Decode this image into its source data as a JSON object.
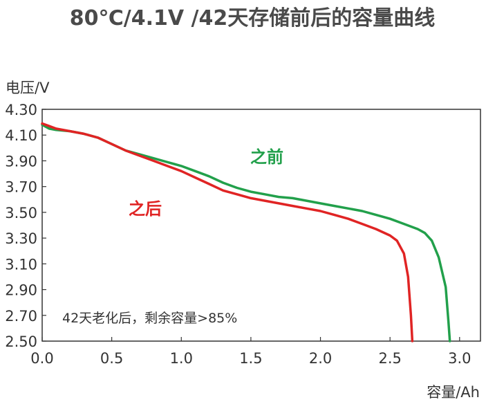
{
  "chart_data": {
    "type": "line",
    "title": "80℃/4.1V /42天存储前后的容量曲线",
    "ylabel": "电压/V",
    "xlabel": "容量/Ah",
    "xlim": [
      0.0,
      3.15
    ],
    "ylim": [
      2.5,
      4.3
    ],
    "xticks": [
      "0.0",
      "0.5",
      "1.0",
      "1.5",
      "2.0",
      "2.5",
      "3.0"
    ],
    "yticks": [
      "4.30",
      "4.10",
      "3.90",
      "3.70",
      "3.50",
      "3.30",
      "3.10",
      "2.90",
      "2.70",
      "2.50"
    ],
    "annotation": "42天老化后，剩余容量>85%",
    "series": [
      {
        "name": "之前",
        "color": "#22a04b",
        "points": [
          [
            0.0,
            4.18
          ],
          [
            0.05,
            4.15
          ],
          [
            0.1,
            4.14
          ],
          [
            0.2,
            4.13
          ],
          [
            0.3,
            4.11
          ],
          [
            0.4,
            4.08
          ],
          [
            0.5,
            4.03
          ],
          [
            0.6,
            3.98
          ],
          [
            0.7,
            3.95
          ],
          [
            0.8,
            3.92
          ],
          [
            0.9,
            3.89
          ],
          [
            1.0,
            3.86
          ],
          [
            1.1,
            3.82
          ],
          [
            1.2,
            3.78
          ],
          [
            1.3,
            3.73
          ],
          [
            1.4,
            3.69
          ],
          [
            1.5,
            3.66
          ],
          [
            1.6,
            3.64
          ],
          [
            1.7,
            3.62
          ],
          [
            1.8,
            3.61
          ],
          [
            1.9,
            3.59
          ],
          [
            2.0,
            3.57
          ],
          [
            2.1,
            3.55
          ],
          [
            2.2,
            3.53
          ],
          [
            2.3,
            3.51
          ],
          [
            2.4,
            3.48
          ],
          [
            2.5,
            3.45
          ],
          [
            2.6,
            3.41
          ],
          [
            2.7,
            3.37
          ],
          [
            2.75,
            3.34
          ],
          [
            2.8,
            3.28
          ],
          [
            2.85,
            3.15
          ],
          [
            2.9,
            2.92
          ],
          [
            2.92,
            2.65
          ],
          [
            2.93,
            2.5
          ]
        ]
      },
      {
        "name": "之后",
        "color": "#e02424",
        "points": [
          [
            0.0,
            4.19
          ],
          [
            0.05,
            4.17
          ],
          [
            0.1,
            4.15
          ],
          [
            0.2,
            4.13
          ],
          [
            0.3,
            4.11
          ],
          [
            0.4,
            4.08
          ],
          [
            0.5,
            4.03
          ],
          [
            0.6,
            3.98
          ],
          [
            0.7,
            3.94
          ],
          [
            0.8,
            3.9
          ],
          [
            0.9,
            3.86
          ],
          [
            1.0,
            3.82
          ],
          [
            1.1,
            3.77
          ],
          [
            1.2,
            3.72
          ],
          [
            1.3,
            3.67
          ],
          [
            1.4,
            3.64
          ],
          [
            1.5,
            3.61
          ],
          [
            1.6,
            3.59
          ],
          [
            1.7,
            3.57
          ],
          [
            1.8,
            3.55
          ],
          [
            1.9,
            3.53
          ],
          [
            2.0,
            3.51
          ],
          [
            2.1,
            3.48
          ],
          [
            2.2,
            3.45
          ],
          [
            2.3,
            3.41
          ],
          [
            2.4,
            3.37
          ],
          [
            2.5,
            3.32
          ],
          [
            2.55,
            3.28
          ],
          [
            2.6,
            3.18
          ],
          [
            2.63,
            3.0
          ],
          [
            2.65,
            2.7
          ],
          [
            2.66,
            2.5
          ]
        ]
      }
    ]
  }
}
